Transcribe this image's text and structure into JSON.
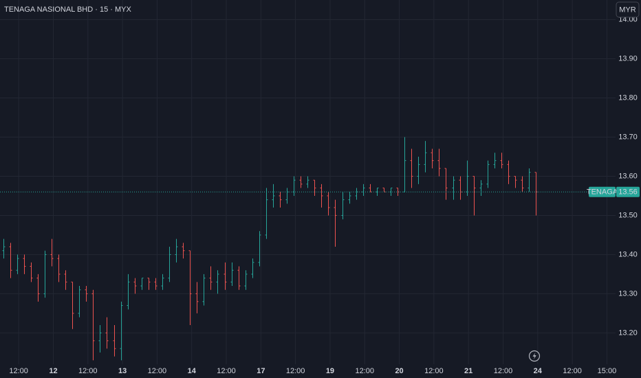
{
  "chart_data": {
    "type": "ohlc",
    "title": "TENAGA NASIONAL BHD · 15 · MYX",
    "currency": "MYR",
    "last_price": {
      "name": "TENAGA",
      "value": 13.56
    },
    "up_color": "#26a69a",
    "down_color": "#ef5350",
    "grid": true,
    "x": [
      -0.45,
      -0.25,
      -0.05,
      0.15,
      0.35,
      0.55,
      0.75,
      0.95,
      1.15,
      1.35,
      1.55,
      1.75,
      1.95,
      2.15,
      2.35,
      2.55,
      2.75,
      2.95,
      3.15,
      3.35,
      3.55,
      3.75,
      3.95,
      4.15,
      4.35,
      4.55,
      4.75,
      4.95,
      5.15,
      5.35,
      5.55,
      5.75,
      5.95,
      6.15,
      6.35,
      6.55,
      6.75,
      6.95,
      7.15,
      7.35,
      7.55,
      7.75,
      7.95,
      8.15,
      8.35,
      8.55,
      8.75,
      8.95,
      9.15,
      9.35,
      9.55,
      9.75,
      9.95,
      10.15,
      10.35,
      10.55,
      10.75,
      10.95,
      11.15,
      11.35,
      11.55,
      11.75,
      11.95,
      12.15,
      12.35,
      12.55,
      12.75,
      12.95,
      13.15,
      13.35,
      13.55,
      13.75,
      13.95,
      14.15,
      14.35,
      14.55,
      14.75,
      14.95
    ],
    "open": [
      13.41,
      13.42,
      13.36,
      13.39,
      13.37,
      13.34,
      13.3,
      13.4,
      13.39,
      13.35,
      13.33,
      13.25,
      13.31,
      13.3,
      13.18,
      13.2,
      13.18,
      13.16,
      13.27,
      13.33,
      13.32,
      13.34,
      13.33,
      13.32,
      13.34,
      13.4,
      13.42,
      13.41,
      13.3,
      13.28,
      13.34,
      13.33,
      13.35,
      13.33,
      13.36,
      13.32,
      13.35,
      13.38,
      13.45,
      13.54,
      13.55,
      13.54,
      13.56,
      13.59,
      13.58,
      13.59,
      13.57,
      13.55,
      13.52,
      13.5,
      13.54,
      13.55,
      13.56,
      13.57,
      13.56,
      13.57,
      13.56,
      13.57,
      13.56,
      13.64,
      13.6,
      13.63,
      13.66,
      13.64,
      13.62,
      13.57,
      13.59,
      13.56,
      13.6,
      13.57,
      13.58,
      13.63,
      13.64,
      13.63,
      13.6,
      13.59,
      13.57,
      13.61
    ],
    "high": [
      13.44,
      13.43,
      13.4,
      13.4,
      13.38,
      13.35,
      13.41,
      13.44,
      13.4,
      13.36,
      13.33,
      13.32,
      13.32,
      13.31,
      13.22,
      13.24,
      13.22,
      13.28,
      13.35,
      13.34,
      13.34,
      13.34,
      13.34,
      13.35,
      13.42,
      13.44,
      13.43,
      13.41,
      13.33,
      13.35,
      13.37,
      13.36,
      13.38,
      13.38,
      13.37,
      13.36,
      13.39,
      13.46,
      13.57,
      13.58,
      13.56,
      13.57,
      13.6,
      13.6,
      13.6,
      13.59,
      13.58,
      13.56,
      13.54,
      13.56,
      13.56,
      13.57,
      13.58,
      13.58,
      13.57,
      13.57,
      13.57,
      13.57,
      13.7,
      13.67,
      13.65,
      13.69,
      13.67,
      13.67,
      13.62,
      13.6,
      13.6,
      13.64,
      13.6,
      13.59,
      13.64,
      13.66,
      13.66,
      13.64,
      13.6,
      13.6,
      13.62,
      13.61
    ],
    "low": [
      13.39,
      13.34,
      13.35,
      13.35,
      13.33,
      13.28,
      13.29,
      13.37,
      13.33,
      13.31,
      13.21,
      13.24,
      13.28,
      13.13,
      13.15,
      13.16,
      13.14,
      13.13,
      13.26,
      13.3,
      13.31,
      13.31,
      13.31,
      13.31,
      13.33,
      13.38,
      13.39,
      13.22,
      13.25,
      13.27,
      13.31,
      13.3,
      13.31,
      13.32,
      13.31,
      13.31,
      13.34,
      13.37,
      13.44,
      13.52,
      13.52,
      13.53,
      13.55,
      13.57,
      13.57,
      13.55,
      13.52,
      13.5,
      13.42,
      13.49,
      13.53,
      13.54,
      13.55,
      13.56,
      13.55,
      13.56,
      13.55,
      13.55,
      13.56,
      13.57,
      13.58,
      13.61,
      13.62,
      13.6,
      13.54,
      13.54,
      13.54,
      13.55,
      13.5,
      13.55,
      13.57,
      13.62,
      13.62,
      13.58,
      13.57,
      13.56,
      13.56,
      13.5
    ],
    "close": [
      13.42,
      13.36,
      13.39,
      13.37,
      13.34,
      13.3,
      13.4,
      13.39,
      13.35,
      13.33,
      13.25,
      13.31,
      13.3,
      13.18,
      13.2,
      13.18,
      13.16,
      13.27,
      13.33,
      13.32,
      13.34,
      13.33,
      13.32,
      13.34,
      13.4,
      13.42,
      13.41,
      13.3,
      13.28,
      13.34,
      13.33,
      13.35,
      13.33,
      13.36,
      13.32,
      13.35,
      13.38,
      13.45,
      13.54,
      13.55,
      13.54,
      13.56,
      13.59,
      13.58,
      13.59,
      13.57,
      13.55,
      13.52,
      13.5,
      13.54,
      13.55,
      13.56,
      13.57,
      13.56,
      13.57,
      13.56,
      13.57,
      13.56,
      13.64,
      13.6,
      13.63,
      13.66,
      13.64,
      13.62,
      13.57,
      13.59,
      13.56,
      13.6,
      13.57,
      13.58,
      13.63,
      13.64,
      13.63,
      13.6,
      13.59,
      13.57,
      13.61,
      13.56
    ],
    "xlim": [
      -0.54,
      17.25
    ],
    "xticks": [
      {
        "value": 0,
        "label": "12:00"
      },
      {
        "value": 1,
        "label": "12"
      },
      {
        "value": 2,
        "label": "12:00"
      },
      {
        "value": 3,
        "label": "13"
      },
      {
        "value": 4,
        "label": "12:00"
      },
      {
        "value": 5,
        "label": "14"
      },
      {
        "value": 6,
        "label": "12:00"
      },
      {
        "value": 7,
        "label": "17"
      },
      {
        "value": 8,
        "label": "12:00"
      },
      {
        "value": 9,
        "label": "19"
      },
      {
        "value": 10,
        "label": "12:00"
      },
      {
        "value": 11,
        "label": "20"
      },
      {
        "value": 12,
        "label": "12:00"
      },
      {
        "value": 13,
        "label": "21"
      },
      {
        "value": 14,
        "label": "12:00"
      },
      {
        "value": 15,
        "label": "24"
      },
      {
        "value": 16,
        "label": "12:00"
      },
      {
        "value": 17,
        "label": "15:00"
      }
    ],
    "ylim": [
      13.12,
      14.05
    ],
    "yticks": [
      {
        "value": 13.2,
        "label": "13.20"
      },
      {
        "value": 13.3,
        "label": "13.30"
      },
      {
        "value": 13.4,
        "label": "13.40"
      },
      {
        "value": 13.5,
        "label": "13.50"
      },
      {
        "value": 13.6,
        "label": "13.60"
      },
      {
        "value": 13.7,
        "label": "13.70"
      },
      {
        "value": 13.8,
        "label": "13.80"
      },
      {
        "value": 13.9,
        "label": "13.90"
      },
      {
        "value": 14,
        "label": "14.00"
      }
    ]
  }
}
